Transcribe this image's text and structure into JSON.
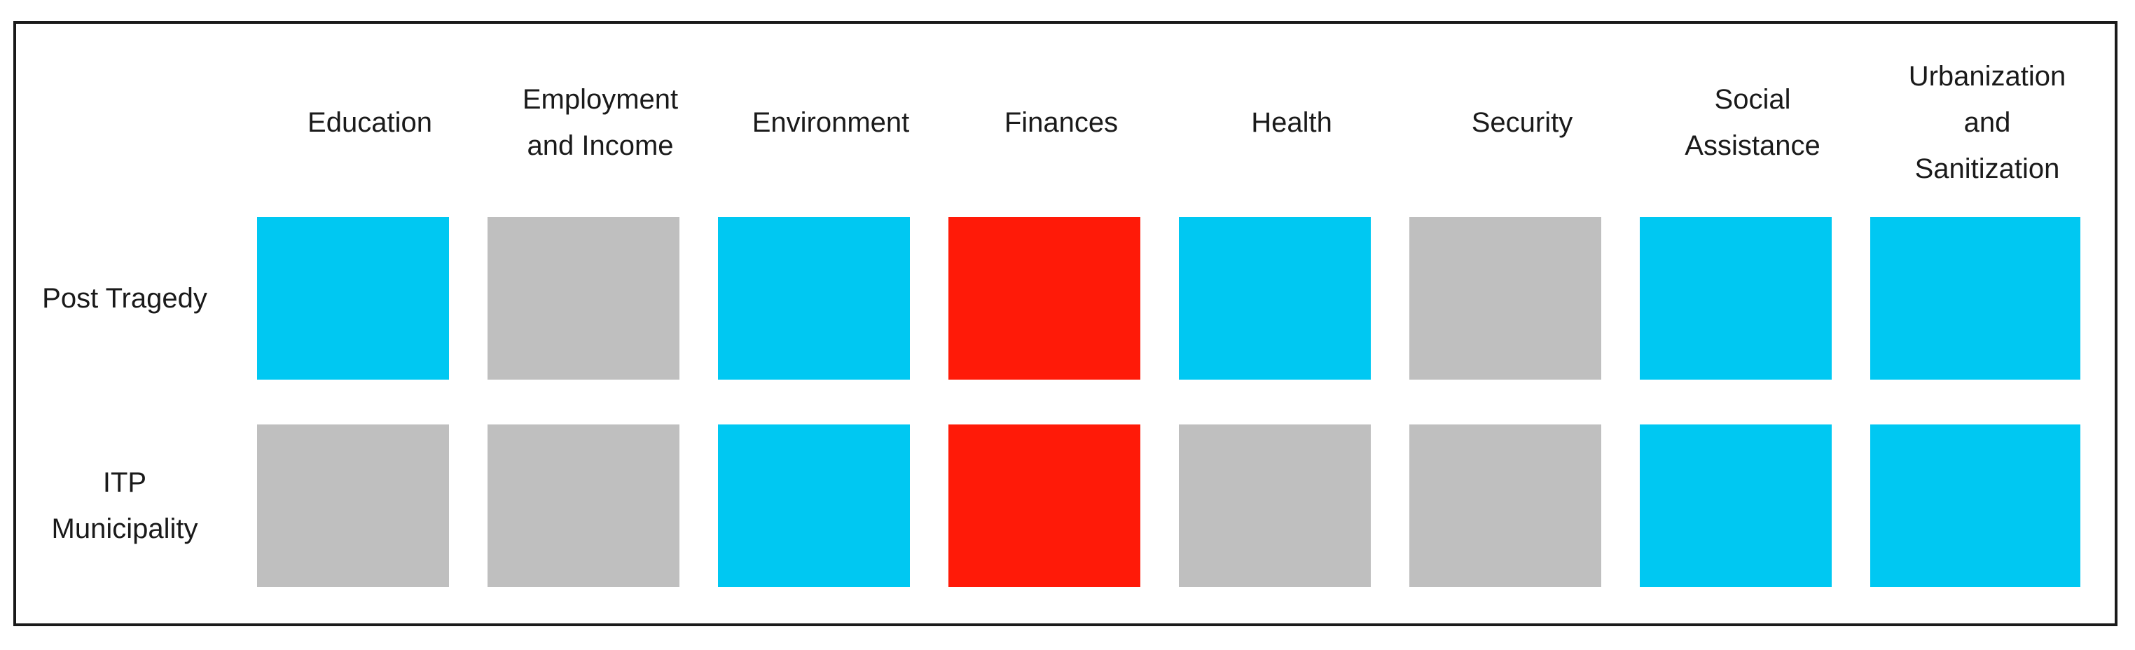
{
  "columns": [
    "Education",
    "Employment\nand Income",
    "Environment",
    "Finances",
    "Health",
    "Security",
    "Social\nAssistance",
    "Urbanization\nand\nSanitization"
  ],
  "rows": [
    {
      "label": "Post Tragedy",
      "cells": [
        "cyan",
        "gray",
        "cyan",
        "red",
        "cyan",
        "gray",
        "cyan",
        "cyan"
      ]
    },
    {
      "label": "ITP\nMunicipality",
      "cells": [
        "gray",
        "gray",
        "cyan",
        "red",
        "gray",
        "gray",
        "cyan",
        "cyan"
      ]
    }
  ],
  "colors": {
    "cyan": "#00c8f2",
    "gray": "#bfbfbf",
    "red": "#ff1a08"
  }
}
